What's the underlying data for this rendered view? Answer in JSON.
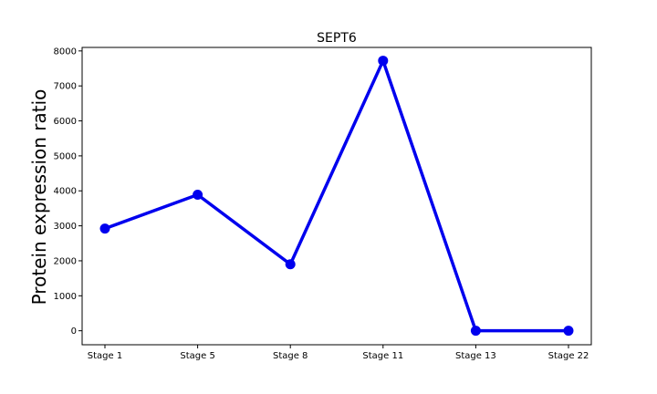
{
  "chart_data": {
    "type": "line",
    "title": "SEPT6",
    "xlabel": "",
    "ylabel": "Protein expression ratio",
    "categories": [
      "Stage 1",
      "Stage 5",
      "Stage 8",
      "Stage 11",
      "Stage 13",
      "Stage 22"
    ],
    "series": [
      {
        "values": [
          2920,
          3890,
          1900,
          7720,
          0,
          0
        ],
        "color": "#0000ee",
        "marker": "circle"
      }
    ],
    "ylim": [
      -400,
      8100
    ],
    "yticks": [
      0,
      1000,
      2000,
      3000,
      4000,
      5000,
      6000,
      7000,
      8000
    ],
    "grid": false
  }
}
